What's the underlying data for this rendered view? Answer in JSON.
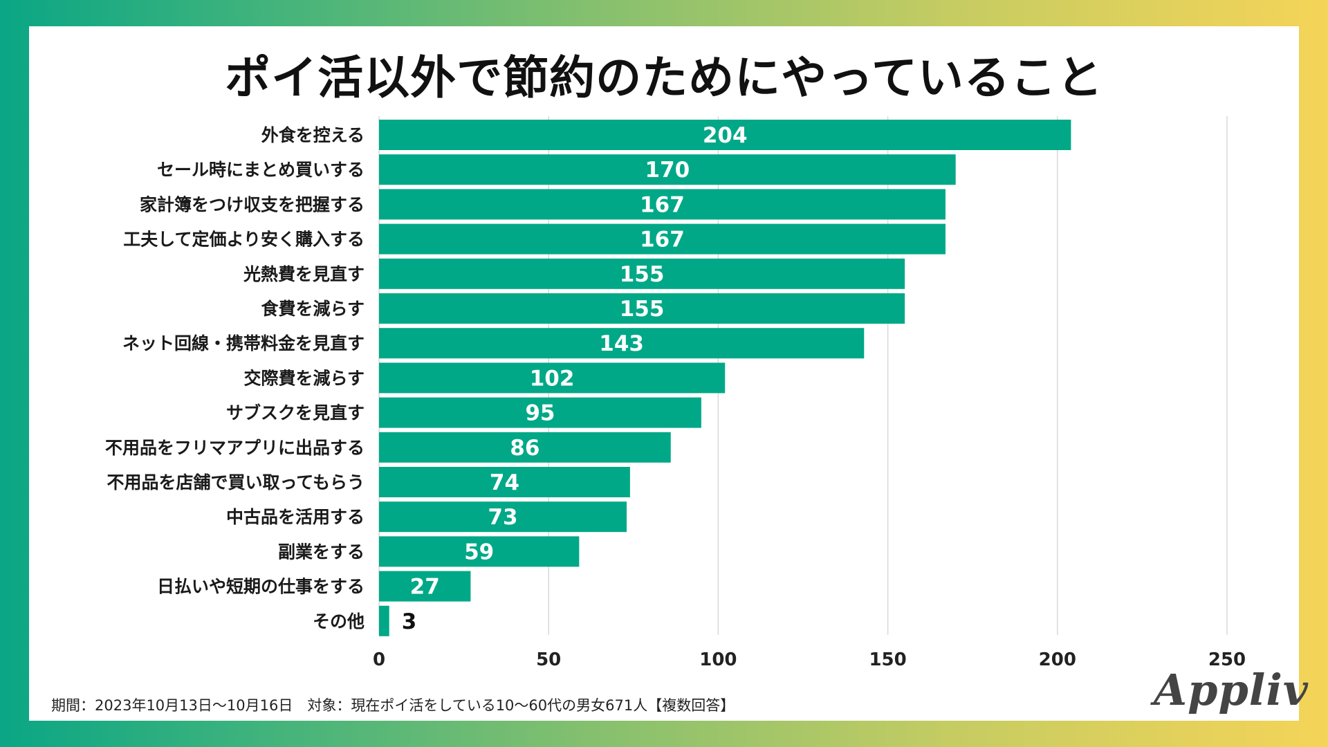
{
  "chart_data": {
    "type": "bar",
    "orientation": "horizontal",
    "title": "ポイ活以外で節約のためにやっていること",
    "categories": [
      "外食を控える",
      "セール時にまとめ買いする",
      "家計簿をつけ収支を把握する",
      "工夫して定価より安く購入する",
      "光熱費を見直す",
      "食費を減らす",
      "ネット回線・携帯料金を見直す",
      "交際費を減らす",
      "サブスクを見直す",
      "不用品をフリマアプリに出品する",
      "不用品を店舗で買い取ってもらう",
      "中古品を活用する",
      "副業をする",
      "日払いや短期の仕事をする",
      "その他"
    ],
    "values": [
      204,
      170,
      167,
      167,
      155,
      155,
      143,
      102,
      95,
      86,
      74,
      73,
      59,
      27,
      3
    ],
    "xlim": [
      0,
      250
    ],
    "xticks": [
      0,
      50,
      100,
      150,
      200,
      250
    ],
    "grid": true,
    "legend": "none",
    "bar_color": "#00a887"
  },
  "footnote": "期間：2023年10月13日～10月16日　対象：現在ポイ活をしている10～60代の男女671人【複数回答】",
  "logo": "Appliv"
}
